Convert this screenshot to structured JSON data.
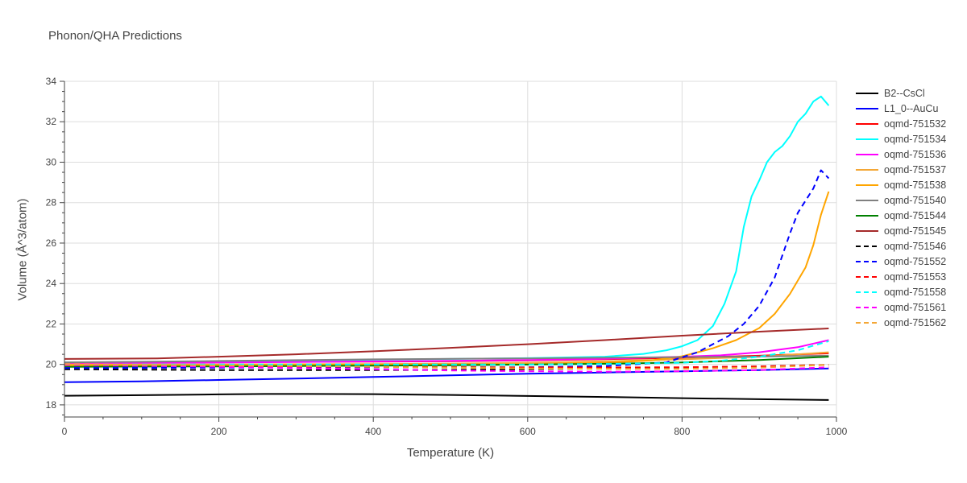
{
  "title": "Phonon/QHA Predictions",
  "chart_data": {
    "type": "line",
    "title": "Phonon/QHA Predictions",
    "xlabel": "Temperature (K)",
    "ylabel": "Volume (Å^3/atom)",
    "xlim": [
      0,
      1000
    ],
    "ylim": [
      17.4,
      34
    ],
    "xticks": [
      0,
      200,
      400,
      600,
      800,
      1000
    ],
    "yticks": [
      18,
      20,
      22,
      24,
      26,
      28,
      30,
      32,
      34
    ],
    "grid": true,
    "legend_position": "right",
    "series": [
      {
        "name": "B2--CsCl",
        "color": "#000000",
        "dash": "solid",
        "x": [
          0,
          100,
          200,
          260,
          300,
          400,
          500,
          600,
          700,
          800,
          900,
          990
        ],
        "y": [
          18.45,
          18.48,
          18.52,
          18.54,
          18.54,
          18.53,
          18.49,
          18.44,
          18.39,
          18.33,
          18.28,
          18.24
        ]
      },
      {
        "name": "L1_0--AuCu",
        "color": "#0000ff",
        "dash": "solid",
        "x": [
          0,
          100,
          200,
          300,
          400,
          500,
          600,
          700,
          800,
          900,
          990
        ],
        "y": [
          19.12,
          19.16,
          19.23,
          19.3,
          19.38,
          19.46,
          19.54,
          19.6,
          19.66,
          19.72,
          19.8
        ]
      },
      {
        "name": "oqmd-751532",
        "color": "#ff0000",
        "dash": "solid",
        "x": [
          0,
          100,
          200,
          300,
          400,
          500,
          600,
          700,
          800,
          900,
          990
        ],
        "y": [
          20.1,
          20.11,
          20.12,
          20.13,
          20.14,
          20.16,
          20.2,
          20.26,
          20.33,
          20.43,
          20.55
        ]
      },
      {
        "name": "oqmd-751534",
        "color": "#00ffff",
        "dash": "solid",
        "x": [
          0,
          100,
          200,
          300,
          400,
          500,
          600,
          700,
          750,
          780,
          800,
          820,
          840,
          855,
          870,
          880,
          890,
          900,
          910,
          920,
          930,
          940,
          950,
          960,
          970,
          980,
          990
        ],
        "y": [
          20.1,
          20.12,
          20.15,
          20.19,
          20.23,
          20.27,
          20.31,
          20.38,
          20.52,
          20.7,
          20.9,
          21.2,
          21.9,
          23.0,
          24.6,
          26.8,
          28.3,
          29.1,
          30.0,
          30.5,
          30.8,
          31.3,
          32.0,
          32.4,
          33.0,
          33.25,
          32.8
        ]
      },
      {
        "name": "oqmd-751536",
        "color": "#ff00ff",
        "dash": "solid",
        "x": [
          0,
          100,
          200,
          300,
          400,
          500,
          600,
          700,
          800,
          850,
          900,
          950,
          990
        ],
        "y": [
          20.05,
          20.07,
          20.09,
          20.12,
          20.15,
          20.18,
          20.22,
          20.28,
          20.38,
          20.45,
          20.6,
          20.85,
          21.2
        ]
      },
      {
        "name": "oqmd-751537",
        "color": "#f4a736",
        "dash": "solid",
        "x": [
          0,
          100,
          200,
          300,
          400,
          500,
          600,
          700,
          800,
          900,
          990
        ],
        "y": [
          20.0,
          20.0,
          20.0,
          20.01,
          20.02,
          20.04,
          20.08,
          20.15,
          20.25,
          20.38,
          20.6
        ]
      },
      {
        "name": "oqmd-751538",
        "color": "#ffa500",
        "dash": "solid",
        "x": [
          0,
          100,
          200,
          300,
          400,
          500,
          600,
          700,
          760,
          800,
          840,
          870,
          900,
          920,
          940,
          960,
          970,
          980,
          990
        ],
        "y": [
          19.95,
          19.96,
          19.97,
          19.98,
          19.99,
          20.0,
          20.02,
          20.08,
          20.2,
          20.4,
          20.8,
          21.2,
          21.8,
          22.5,
          23.5,
          24.8,
          25.9,
          27.4,
          28.55
        ]
      },
      {
        "name": "oqmd-751540",
        "color": "#808080",
        "dash": "solid",
        "x": [
          0,
          100,
          200,
          300,
          400,
          500,
          600,
          700,
          800,
          900,
          990
        ],
        "y": [
          20.1,
          20.13,
          20.17,
          20.21,
          20.25,
          20.28,
          20.3,
          20.33,
          20.36,
          20.39,
          20.43
        ]
      },
      {
        "name": "oqmd-751544",
        "color": "#008000",
        "dash": "solid",
        "x": [
          0,
          100,
          200,
          300,
          400,
          500,
          600,
          700,
          800,
          900,
          990
        ],
        "y": [
          19.88,
          19.89,
          19.9,
          19.92,
          19.94,
          19.96,
          19.99,
          20.03,
          20.1,
          20.22,
          20.38
        ]
      },
      {
        "name": "oqmd-751545",
        "color": "#a52a2a",
        "dash": "solid",
        "x": [
          0,
          120,
          200,
          300,
          400,
          500,
          600,
          700,
          800,
          900,
          990
        ],
        "y": [
          20.27,
          20.3,
          20.38,
          20.5,
          20.65,
          20.82,
          21.0,
          21.2,
          21.42,
          21.62,
          21.78
        ]
      },
      {
        "name": "oqmd-751546",
        "color": "#000000",
        "dash": "dash",
        "x": [
          0,
          100,
          200,
          300,
          400,
          500,
          600,
          700,
          800,
          900,
          990
        ],
        "y": [
          19.76,
          19.74,
          19.72,
          19.72,
          19.72,
          19.73,
          19.76,
          19.8,
          19.85,
          19.9,
          19.98
        ]
      },
      {
        "name": "oqmd-751552",
        "color": "#0000ff",
        "dash": "dash",
        "x": [
          0,
          100,
          200,
          300,
          400,
          500,
          600,
          700,
          780,
          820,
          860,
          880,
          900,
          920,
          940,
          950,
          960,
          970,
          980,
          990
        ],
        "y": [
          19.82,
          19.83,
          19.84,
          19.85,
          19.86,
          19.86,
          19.86,
          19.92,
          20.1,
          20.6,
          21.4,
          22.0,
          22.9,
          24.3,
          26.5,
          27.5,
          28.1,
          28.7,
          29.6,
          29.2
        ]
      },
      {
        "name": "oqmd-751553",
        "color": "#ff0000",
        "dash": "dash",
        "x": [
          0,
          100,
          200,
          300,
          400,
          500,
          600,
          700,
          800,
          900,
          990
        ],
        "y": [
          19.98,
          19.95,
          19.92,
          19.9,
          19.88,
          19.86,
          19.85,
          19.85,
          19.86,
          19.9,
          19.98
        ]
      },
      {
        "name": "oqmd-751558",
        "color": "#00ffff",
        "dash": "dash",
        "x": [
          0,
          100,
          200,
          300,
          400,
          500,
          600,
          700,
          800,
          850,
          900,
          950,
          990
        ],
        "y": [
          20.0,
          20.0,
          20.0,
          20.0,
          20.0,
          20.0,
          20.0,
          20.02,
          20.08,
          20.18,
          20.38,
          20.7,
          21.15
        ]
      },
      {
        "name": "oqmd-751561",
        "color": "#ff00ff",
        "dash": "dash",
        "x": [
          0,
          100,
          200,
          300,
          400,
          500,
          600,
          700,
          800,
          900,
          990
        ],
        "y": [
          19.98,
          19.93,
          19.88,
          19.82,
          19.76,
          19.7,
          19.66,
          19.64,
          19.66,
          19.72,
          19.86
        ]
      },
      {
        "name": "oqmd-751562",
        "color": "#f4a736",
        "dash": "dash",
        "x": [
          0,
          100,
          200,
          300,
          400,
          500,
          600,
          700,
          800,
          900,
          990
        ],
        "y": [
          20.02,
          19.98,
          19.95,
          19.92,
          19.88,
          19.84,
          19.8,
          19.78,
          19.78,
          19.84,
          19.98
        ]
      }
    ]
  }
}
